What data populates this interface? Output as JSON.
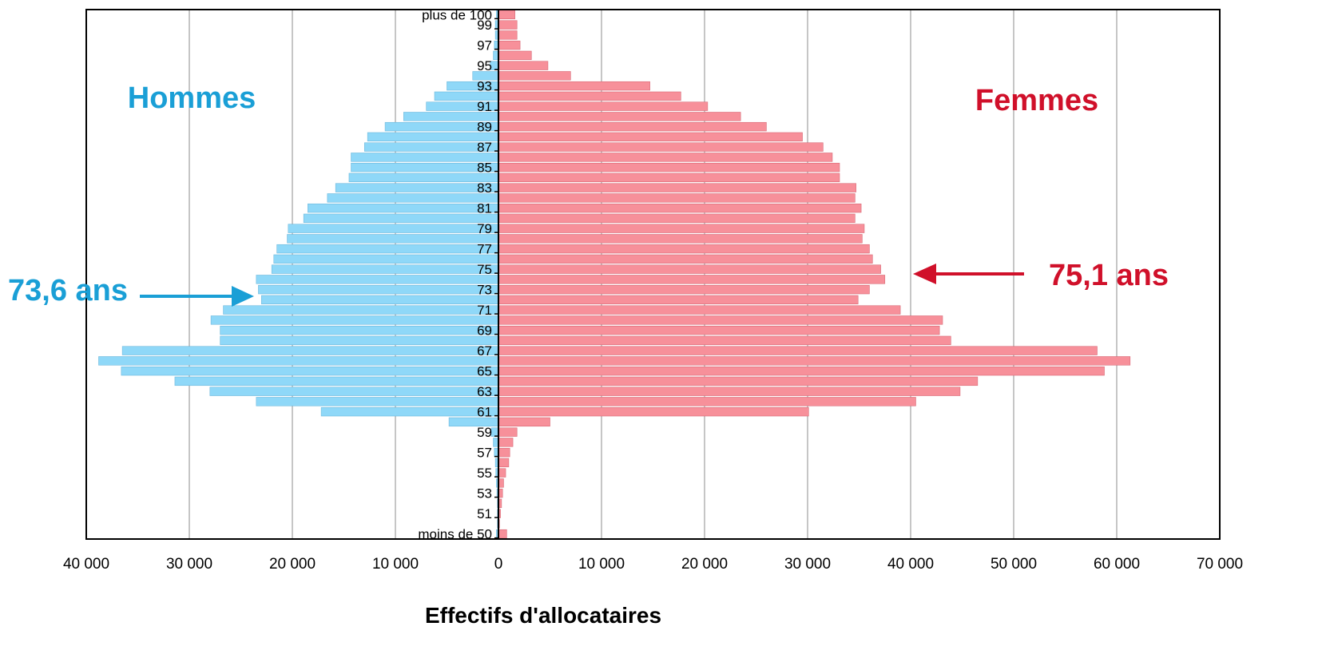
{
  "chart_data": {
    "type": "bar",
    "orientation": "horizontal-population-pyramid",
    "xlabel": "Effectifs d'allocataires",
    "x_ticks": [
      "40 000",
      "30 000",
      "20 000",
      "10 000",
      "0",
      "10 000",
      "20 000",
      "30 000",
      "40 000",
      "50 000",
      "60 000",
      "70 000"
    ],
    "xlim": [
      -40000,
      70000
    ],
    "grid": true,
    "categories": [
      "moins de 50",
      "50",
      "51",
      "52",
      "53",
      "54",
      "55",
      "56",
      "57",
      "58",
      "59",
      "60",
      "61",
      "62",
      "63",
      "64",
      "65",
      "66",
      "67",
      "68",
      "69",
      "70",
      "71",
      "72",
      "73",
      "74",
      "75",
      "76",
      "77",
      "78",
      "79",
      "80",
      "81",
      "82",
      "83",
      "84",
      "85",
      "86",
      "87",
      "88",
      "89",
      "90",
      "91",
      "92",
      "93",
      "94",
      "95",
      "96",
      "97",
      "98",
      "99",
      "plus de 100"
    ],
    "category_labels": [
      "moins de 50",
      "",
      "51",
      "",
      "53",
      "",
      "55",
      "",
      "57",
      "",
      "59",
      "",
      "61",
      "",
      "63",
      "",
      "65",
      "",
      "67",
      "",
      "69",
      "",
      "71",
      "",
      "73",
      "",
      "75",
      "",
      "77",
      "",
      "79",
      "",
      "81",
      "",
      "83",
      "",
      "85",
      "",
      "87",
      "",
      "89",
      "",
      "91",
      "",
      "93",
      "",
      "95",
      "",
      "97",
      "",
      "99",
      "plus de 100"
    ],
    "series": [
      {
        "name": "Hommes",
        "color": "#8fd8f8",
        "values": [
          200,
          100,
          100,
          100,
          150,
          200,
          250,
          300,
          400,
          500,
          700,
          4800,
          17200,
          23500,
          28000,
          31400,
          36600,
          38800,
          36500,
          27000,
          27000,
          27900,
          26700,
          23000,
          23300,
          23500,
          22000,
          21800,
          21500,
          20500,
          20400,
          18900,
          18500,
          16600,
          15800,
          14500,
          14300,
          14300,
          13000,
          12700,
          11000,
          9200,
          7000,
          6200,
          5000,
          2500,
          800,
          500,
          400,
          300,
          300,
          200
        ]
      },
      {
        "name": "Femmes",
        "color": "#f7909a",
        "values": [
          800,
          100,
          200,
          300,
          400,
          500,
          700,
          1000,
          1100,
          1400,
          1800,
          5000,
          30100,
          40500,
          44800,
          46500,
          58800,
          61300,
          58100,
          43900,
          42800,
          43100,
          39000,
          34900,
          36000,
          37500,
          37100,
          36300,
          36000,
          35300,
          35500,
          34600,
          35200,
          34600,
          34700,
          33100,
          33100,
          32400,
          31500,
          29500,
          26000,
          23500,
          20300,
          17700,
          14700,
          7000,
          4800,
          3200,
          2100,
          1800,
          1800,
          1600
        ]
      }
    ],
    "annotations": {
      "left_group": "Hommes",
      "right_group": "Femmes",
      "left_value": "73,6 ans",
      "right_value": "75,1 ans"
    },
    "colors": {
      "hommes_text": "#1a9fd6",
      "femmes_text": "#d0102a",
      "arrow_left": "#1a9fd6",
      "arrow_right": "#d0102a"
    }
  }
}
